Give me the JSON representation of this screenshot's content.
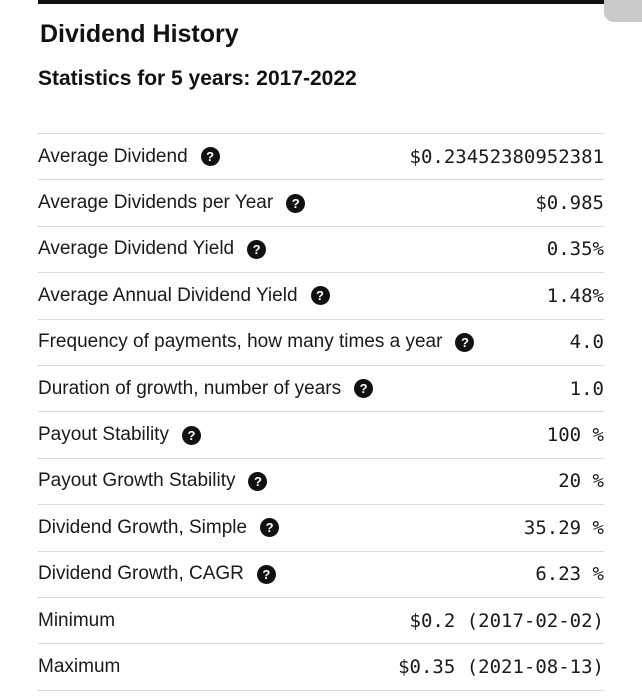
{
  "header": {
    "title": "Dividend History",
    "subtitle": "Statistics for 5 years: 2017-2022"
  },
  "icons": {
    "help": "question-circle-icon",
    "help_glyph": "?"
  },
  "stats": [
    {
      "label": "Average Dividend",
      "value": "$0.23452380952381",
      "help": true
    },
    {
      "label": "Average Dividends per Year",
      "value": "$0.985",
      "help": true
    },
    {
      "label": "Average Dividend Yield",
      "value": "0.35%",
      "help": true
    },
    {
      "label": "Average Annual Dividend Yield",
      "value": "1.48%",
      "help": true
    },
    {
      "label": "Frequency of payments, how many times a year",
      "value": "4.0",
      "help": true
    },
    {
      "label": "Duration of growth, number of years",
      "value": "1.0",
      "help": true
    },
    {
      "label": "Payout Stability",
      "value": "100 %",
      "help": true
    },
    {
      "label": "Payout Growth Stability",
      "value": "20 %",
      "help": true
    },
    {
      "label": "Dividend Growth, Simple",
      "value": "35.29 %",
      "help": true
    },
    {
      "label": "Dividend Growth, CAGR",
      "value": "6.23 %",
      "help": true
    },
    {
      "label": "Minimum",
      "value": "$0.2 (2017-02-02)",
      "help": false
    },
    {
      "label": "Maximum",
      "value": "$0.35 (2021-08-13)",
      "help": false
    }
  ]
}
